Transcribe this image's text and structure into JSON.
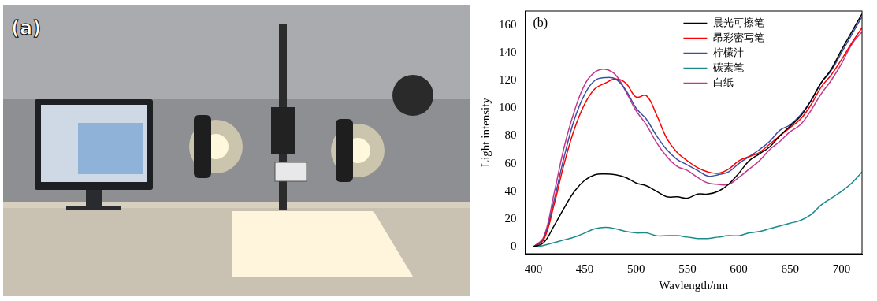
{
  "panel_a": {
    "label": "(a)"
  },
  "chart_data": {
    "type": "line",
    "title": "(b)",
    "x_label": "Wavlength/nm",
    "y_label": "Light intensity",
    "x": [
      400,
      410,
      420,
      430,
      440,
      450,
      460,
      470,
      480,
      490,
      500,
      510,
      520,
      530,
      540,
      550,
      560,
      570,
      580,
      590,
      600,
      610,
      620,
      630,
      640,
      650,
      660,
      670,
      680,
      690,
      700,
      710,
      720
    ],
    "xlim": [
      392,
      720
    ],
    "xticks": [
      400,
      450,
      500,
      550,
      600,
      650,
      700
    ],
    "ylim": [
      -5,
      170
    ],
    "yticks": [
      0,
      20,
      40,
      60,
      80,
      100,
      120,
      140,
      160
    ],
    "grid": false,
    "legend": "upper right",
    "series": [
      {
        "name": "晨光可擦笔",
        "color": "#000000",
        "values": [
          0,
          3,
          15,
          28,
          40,
          48,
          52,
          52.5,
          52,
          50,
          46,
          44,
          40,
          36,
          36,
          35,
          38,
          38,
          40,
          45,
          53,
          62,
          67,
          72,
          80,
          87,
          94,
          105,
          118,
          128,
          142,
          155,
          168
        ]
      },
      {
        "name": "昂彩密写笔",
        "color": "#ff0000",
        "values": [
          0,
          5,
          30,
          60,
          85,
          103,
          114,
          118,
          121,
          118,
          108,
          109,
          95,
          78,
          68,
          62,
          57,
          54,
          53,
          56,
          62,
          65,
          68,
          74,
          80,
          86,
          92,
          102,
          115,
          124,
          135,
          147,
          158
        ]
      },
      {
        "name": "柠檬汁",
        "color": "#3b4fa0",
        "values": [
          0,
          6,
          33,
          65,
          92,
          110,
          120,
          122,
          121,
          113,
          100,
          92,
          80,
          70,
          63,
          59,
          55,
          51,
          52,
          54,
          60,
          65,
          70,
          76,
          84,
          88,
          95,
          105,
          118,
          127,
          140,
          153,
          166
        ]
      },
      {
        "name": "碳素笔",
        "color": "#1a8a8a",
        "values": [
          0,
          1,
          3,
          5,
          7,
          10,
          13,
          14,
          13,
          11,
          10,
          10,
          8,
          8,
          8,
          7,
          6,
          6,
          7,
          8,
          8,
          10,
          11,
          13,
          15,
          17,
          19,
          23,
          30,
          35,
          40,
          46,
          54
        ]
      },
      {
        "name": "白纸",
        "color": "#c2388f",
        "values": [
          0,
          7,
          38,
          72,
          98,
          117,
          126,
          128,
          124,
          112,
          98,
          88,
          75,
          65,
          58,
          55,
          50,
          46,
          45,
          45,
          50,
          56,
          62,
          70,
          76,
          83,
          88,
          98,
          110,
          120,
          132,
          146,
          155
        ]
      }
    ]
  }
}
